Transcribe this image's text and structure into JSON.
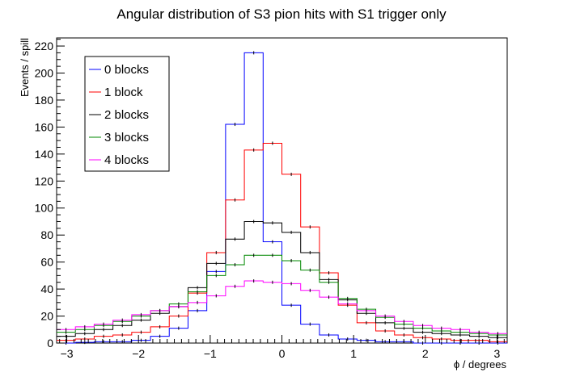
{
  "chart_data": {
    "type": "line",
    "title": "Angular distribution of S3 pion hits with S1 trigger only",
    "xlabel": "ϕ / degrees",
    "ylabel": "Events / spill",
    "xlim": [
      -3.1416,
      3.1416
    ],
    "ylim": [
      0,
      226
    ],
    "xticks": [
      -3,
      -2,
      -1,
      0,
      1,
      2,
      3
    ],
    "xtick_labels": [
      "−3",
      "−2",
      "−1",
      "0",
      "1",
      "2",
      "3"
    ],
    "yticks": [
      0,
      20,
      40,
      60,
      80,
      100,
      120,
      140,
      160,
      180,
      200,
      220
    ],
    "ytick_labels": [
      "0",
      "20",
      "40",
      "60",
      "80",
      "100",
      "120",
      "140",
      "160",
      "180",
      "200",
      "220"
    ],
    "grid": false,
    "legend_position": "top-left",
    "bins": 24,
    "series": [
      {
        "name": "0 blocks",
        "color": "#0000ff",
        "values": [
          0,
          0.5,
          1,
          1,
          2,
          5,
          11,
          24,
          53,
          162,
          215,
          75,
          28,
          14,
          6,
          3,
          2,
          1,
          1,
          0,
          0,
          0,
          0,
          0
        ]
      },
      {
        "name": "1 block",
        "color": "#ff0000",
        "values": [
          2,
          3,
          5,
          6,
          8,
          12,
          20,
          37,
          67,
          106,
          143,
          148,
          125,
          86,
          52,
          28,
          15,
          9,
          6,
          4,
          3,
          2,
          2,
          1
        ]
      },
      {
        "name": "2 blocks",
        "color": "#000000",
        "values": [
          5,
          7,
          10,
          13,
          17,
          22,
          27,
          41,
          59,
          77,
          90,
          89,
          82,
          67,
          47,
          32,
          22,
          15,
          11,
          8,
          7,
          6,
          5,
          4
        ]
      },
      {
        "name": "3 blocks",
        "color": "#008800",
        "values": [
          8,
          10,
          13,
          16,
          20,
          24,
          29,
          38,
          50,
          58,
          65,
          65,
          61,
          54,
          45,
          33,
          25,
          19,
          14,
          11,
          9,
          8,
          7,
          6
        ]
      },
      {
        "name": "4 blocks",
        "color": "#ff00ff",
        "values": [
          10,
          12,
          14,
          17,
          21,
          24,
          27,
          30,
          35,
          42,
          46,
          45,
          44,
          39,
          34,
          29,
          24,
          20,
          16,
          13,
          11,
          10,
          8,
          7
        ]
      }
    ]
  }
}
